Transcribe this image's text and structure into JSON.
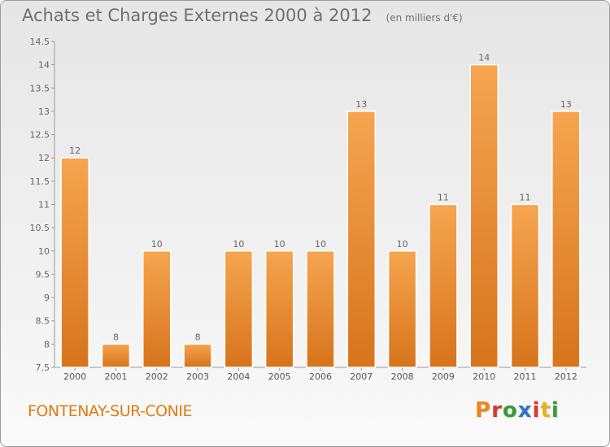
{
  "header": {
    "title": "Achats et Charges Externes 2000 à 2012",
    "subtitle": "(en milliers d'€)"
  },
  "footer": {
    "place": "FONTENAY-SUR-CONIE",
    "brand": "Proxiti",
    "brand_colors": [
      "#e8861f",
      "#d63b2f",
      "#3a9a3a",
      "#2f74c8",
      "#d63b2f",
      "#e8b21f",
      "#3a9a3a"
    ]
  },
  "colors": {
    "bar_top": "#f6a550",
    "bar_bottom": "#d7741c",
    "accent": "#e07a12"
  },
  "chart_data": {
    "type": "bar",
    "categories": [
      "2000",
      "2001",
      "2002",
      "2003",
      "2004",
      "2005",
      "2006",
      "2007",
      "2008",
      "2009",
      "2010",
      "2011",
      "2012"
    ],
    "values": [
      12,
      8,
      10,
      8,
      10,
      10,
      10,
      13,
      10,
      11,
      14,
      11,
      13
    ],
    "value_labels": [
      "12",
      "8",
      "10",
      "8",
      "10",
      "10",
      "10",
      "13",
      "10",
      "11",
      "14",
      "11",
      "13"
    ],
    "ylim": [
      7.5,
      14.5
    ],
    "yticks": [
      7.5,
      8,
      8.5,
      9,
      9.5,
      10,
      10.5,
      11,
      11.5,
      12,
      12.5,
      13,
      13.5,
      14,
      14.5
    ],
    "ytick_labels": [
      "7.5",
      "8",
      "8.5",
      "9",
      "9.5",
      "10",
      "10.5",
      "11",
      "11.5",
      "12",
      "12.5",
      "13",
      "13.5",
      "14",
      "14.5"
    ],
    "grid": false,
    "legend": "none"
  }
}
